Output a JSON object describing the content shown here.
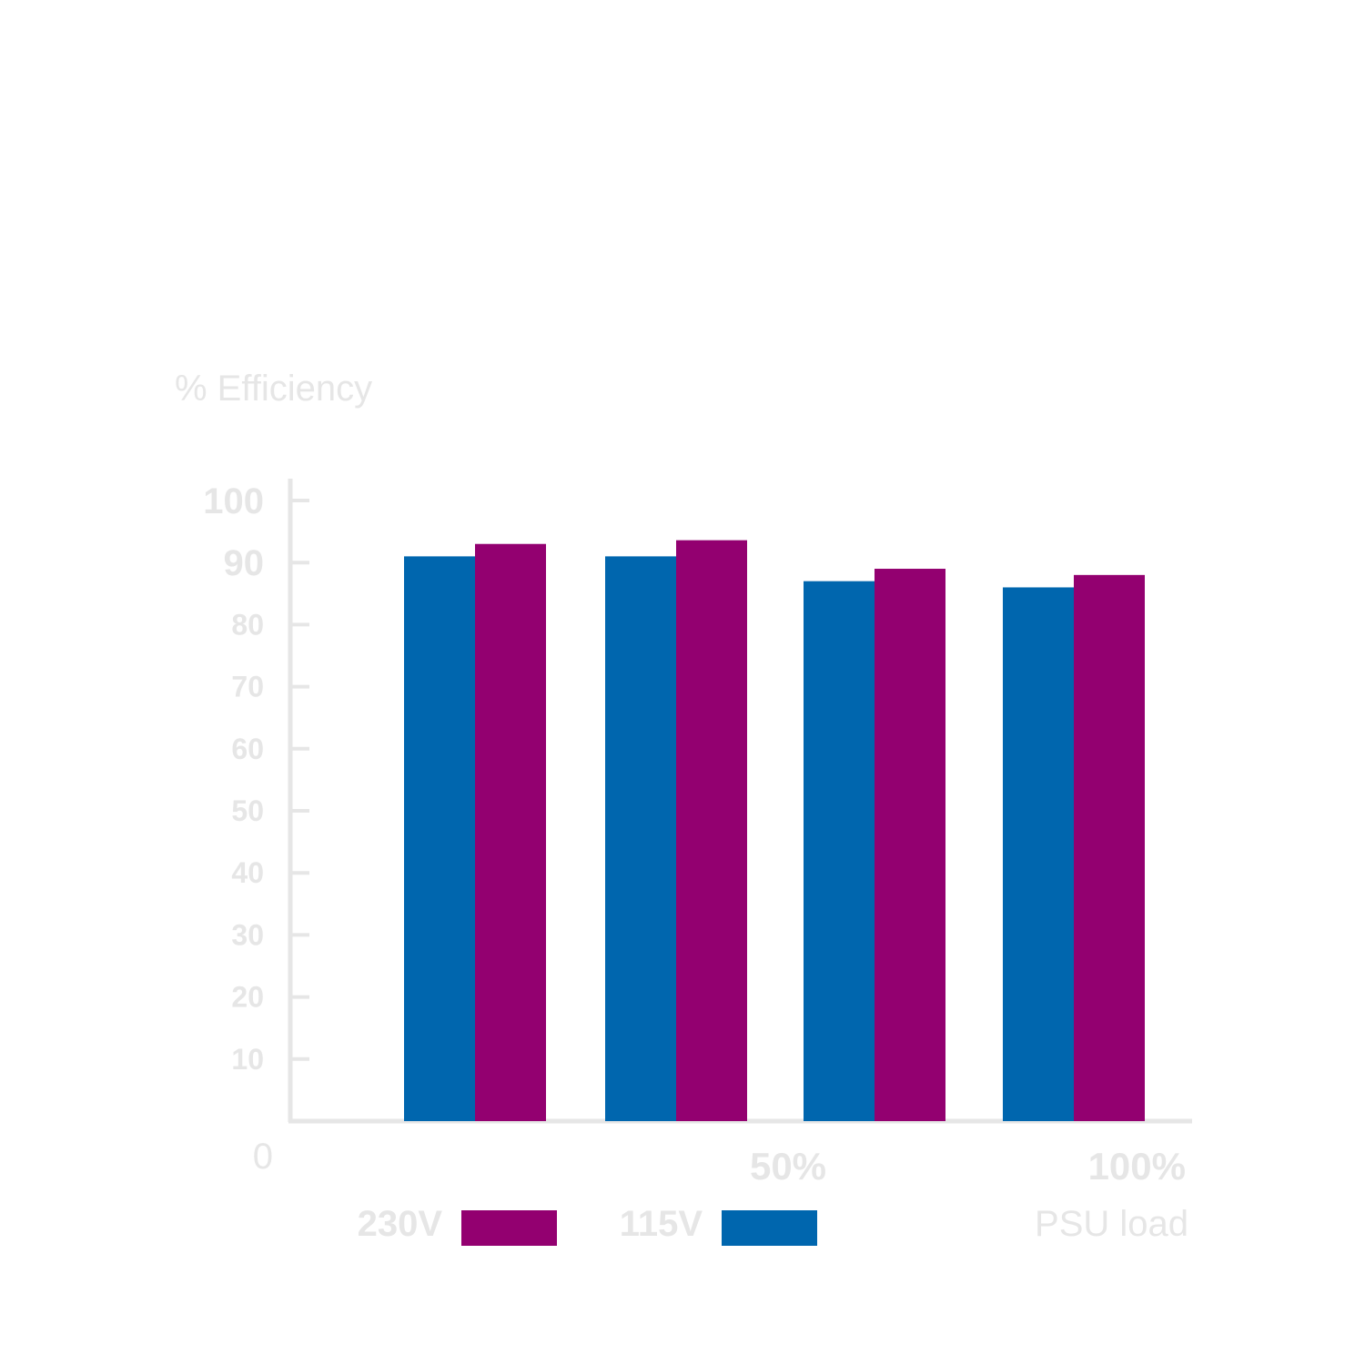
{
  "chart_data": {
    "type": "bar",
    "ylabel": "% Efficiency",
    "xlabel": "PSU load",
    "ylim": [
      0,
      100
    ],
    "y_ticks": [
      {
        "value": 100,
        "label": "100",
        "size": "big"
      },
      {
        "value": 90,
        "label": "90",
        "size": "big"
      },
      {
        "value": 80,
        "label": "80",
        "size": "small"
      },
      {
        "value": 70,
        "label": "70",
        "size": "small"
      },
      {
        "value": 60,
        "label": "60",
        "size": "small"
      },
      {
        "value": 50,
        "label": "50",
        "size": "small"
      },
      {
        "value": 40,
        "label": "40",
        "size": "small"
      },
      {
        "value": 30,
        "label": "30",
        "size": "small"
      },
      {
        "value": 20,
        "label": "20",
        "size": "small"
      },
      {
        "value": 10,
        "label": "10",
        "size": "small"
      }
    ],
    "zero_label": "0",
    "x_tick_labels": [
      {
        "label": "50%",
        "after_group": 1
      },
      {
        "label": "100%",
        "after_group": 3
      }
    ],
    "categories": [
      "",
      "",
      "",
      ""
    ],
    "series": [
      {
        "name": "115V",
        "color": "#0066ae",
        "values": [
          91,
          91,
          87,
          86
        ]
      },
      {
        "name": "230V",
        "color": "#930070",
        "values": [
          93,
          93.6,
          89,
          88
        ]
      }
    ],
    "legend": [
      {
        "label": "230V",
        "color": "#930070"
      },
      {
        "label": "115V",
        "color": "#0066ae"
      }
    ],
    "grid": false,
    "legend_placement": "bottom"
  }
}
